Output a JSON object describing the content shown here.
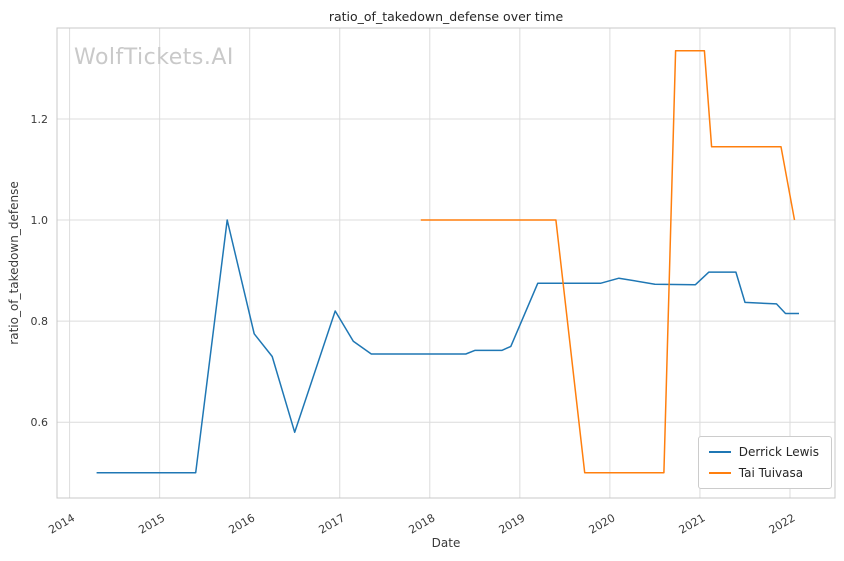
{
  "watermark": "WolfTickets.AI",
  "chart_data": {
    "type": "line",
    "title": "ratio_of_takedown_defense over time",
    "xlabel": "Date",
    "ylabel": "ratio_of_takedown_defense",
    "xlim": [
      2013.86,
      2022.5
    ],
    "ylim": [
      0.45,
      1.38
    ],
    "x_ticks": [
      2014,
      2015,
      2016,
      2017,
      2018,
      2019,
      2020,
      2021,
      2022
    ],
    "y_ticks": [
      0.6,
      0.8,
      1.0,
      1.2
    ],
    "grid": true,
    "legend_position": "lower right",
    "series": [
      {
        "name": "Derrick Lewis",
        "color": "#1f77b4",
        "points": [
          [
            2014.3,
            0.5
          ],
          [
            2015.4,
            0.5
          ],
          [
            2015.75,
            1.0
          ],
          [
            2016.05,
            0.775
          ],
          [
            2016.25,
            0.73
          ],
          [
            2016.5,
            0.58
          ],
          [
            2016.95,
            0.82
          ],
          [
            2017.15,
            0.76
          ],
          [
            2017.35,
            0.735
          ],
          [
            2018.4,
            0.735
          ],
          [
            2018.5,
            0.742
          ],
          [
            2018.8,
            0.742
          ],
          [
            2018.9,
            0.75
          ],
          [
            2019.2,
            0.875
          ],
          [
            2019.9,
            0.875
          ],
          [
            2020.1,
            0.885
          ],
          [
            2020.5,
            0.873
          ],
          [
            2020.95,
            0.872
          ],
          [
            2021.1,
            0.897
          ],
          [
            2021.4,
            0.897
          ],
          [
            2021.5,
            0.837
          ],
          [
            2021.85,
            0.834
          ],
          [
            2021.95,
            0.815
          ],
          [
            2022.1,
            0.815
          ]
        ]
      },
      {
        "name": "Tai Tuivasa",
        "color": "#ff7f0e",
        "points": [
          [
            2017.9,
            1.0
          ],
          [
            2019.4,
            1.0
          ],
          [
            2019.72,
            0.5
          ],
          [
            2020.6,
            0.5
          ],
          [
            2020.73,
            1.335
          ],
          [
            2021.05,
            1.335
          ],
          [
            2021.13,
            1.145
          ],
          [
            2021.9,
            1.145
          ],
          [
            2022.05,
            1.0
          ]
        ]
      }
    ]
  }
}
